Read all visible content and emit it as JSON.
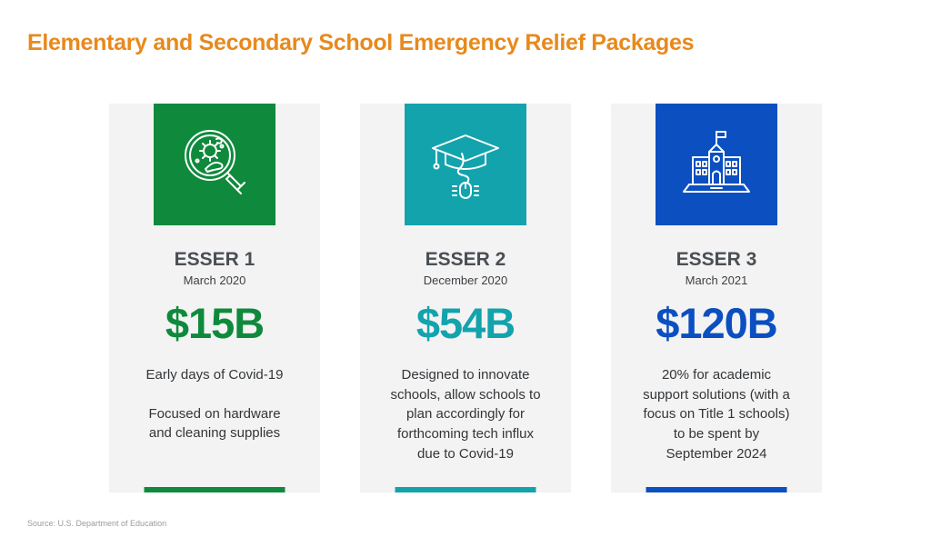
{
  "title": "Elementary and Secondary School Emergency Relief Packages",
  "source": "Source: U.S. Department of Education",
  "colors": {
    "title": "#e8891c",
    "esser1": "#0f8a3c",
    "esser2": "#13a3ad",
    "esser3": "#0b4fc0"
  },
  "cards": [
    {
      "name": "ESSER 1",
      "date": "March 2020",
      "amount": "$15B",
      "icon": "microbe-magnifier-icon",
      "desc": [
        "Early days of Covid-19",
        "",
        "Focused on hardware",
        "and cleaning supplies"
      ]
    },
    {
      "name": "ESSER 2",
      "date": "December 2020",
      "amount": "$54B",
      "icon": "graduation-cap-mouse-icon",
      "desc": [
        "Designed to innovate",
        "schools, allow schools to",
        "plan accordingly for",
        "forthcoming tech influx",
        "due to Covid-19"
      ]
    },
    {
      "name": "ESSER 3",
      "date": "March 2021",
      "amount": "$120B",
      "icon": "school-laptop-icon",
      "desc": [
        "20% for academic",
        "support solutions (with a",
        "focus on Title 1 schools)",
        "to be spent by",
        "September 2024"
      ]
    }
  ]
}
